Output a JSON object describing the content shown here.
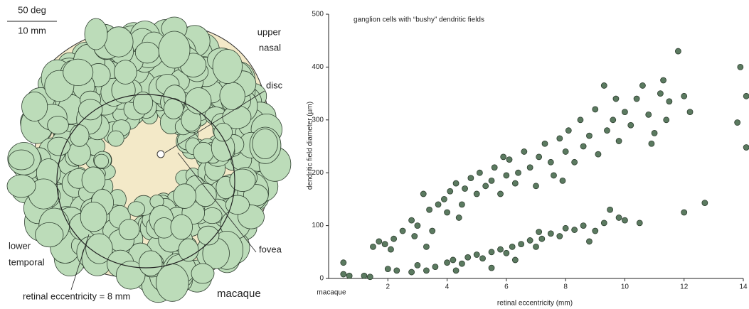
{
  "chart_data": {
    "type": "scatter",
    "title": "ganglion cells with “bushy” dendritic fields",
    "x_label": "retinal eccentricity (mm)",
    "y_label": "dendritic field diameter (µm)",
    "annotation": "macaque",
    "color": "#5b7a60",
    "xlim": [
      0,
      14
    ],
    "xticks": [
      2,
      4,
      6,
      8,
      10,
      12,
      14
    ],
    "ylim": [
      0,
      500
    ],
    "yticks": [
      0,
      100,
      200,
      300,
      400,
      500
    ],
    "x": [
      0.5,
      0.5,
      0.7,
      1.2,
      1.4,
      2,
      2.3,
      2.8,
      3.0,
      3.3,
      3.6,
      4,
      4.2,
      4.5,
      4.7,
      5,
      5.2,
      5.5,
      5.8,
      6,
      6.2,
      6.5,
      6.8,
      7,
      7.2,
      7.5,
      7.8,
      8,
      8.3,
      8.6,
      9,
      9.3,
      9.5,
      9.8,
      10,
      10.5,
      5.5,
      6.3,
      7.1,
      8.8,
      4.3,
      12,
      12.7,
      1.5,
      1.7,
      1.9,
      2.1,
      2.2,
      2.5,
      2.8,
      3,
      3.2,
      3.4,
      3.5,
      3.7,
      3.9,
      4,
      4.1,
      4.3,
      4.5,
      4.6,
      4.8,
      5,
      5.1,
      5.3,
      5.5,
      5.6,
      5.8,
      6,
      6.1,
      6.3,
      6.4,
      6.6,
      6.8,
      7,
      7.1,
      7.3,
      7.5,
      7.6,
      7.8,
      8,
      8.1,
      8.3,
      8.5,
      8.6,
      8.8,
      9,
      9.1,
      9.3,
      9.4,
      9.6,
      9.8,
      10,
      10.2,
      10.4,
      10.6,
      10.8,
      11,
      11.2,
      11.4,
      11.5,
      11.8,
      12,
      12.2,
      13.9,
      13.8,
      14.1,
      14.1,
      11.3,
      10.9,
      5.9,
      4.4,
      3.3,
      2.9,
      7.9,
      9.7
    ],
    "y": [
      30,
      8,
      5,
      5,
      3,
      18,
      15,
      12,
      25,
      15,
      22,
      30,
      35,
      28,
      40,
      45,
      38,
      50,
      55,
      48,
      60,
      65,
      72,
      60,
      75,
      85,
      80,
      95,
      92,
      100,
      90,
      105,
      130,
      115,
      110,
      105,
      20,
      35,
      88,
      70,
      15,
      125,
      143,
      60,
      70,
      65,
      55,
      75,
      90,
      110,
      100,
      160,
      130,
      90,
      140,
      150,
      125,
      165,
      180,
      140,
      170,
      190,
      160,
      200,
      175,
      185,
      210,
      160,
      195,
      225,
      180,
      200,
      240,
      210,
      175,
      230,
      255,
      220,
      195,
      265,
      240,
      280,
      220,
      300,
      250,
      270,
      320,
      235,
      365,
      280,
      300,
      260,
      315,
      290,
      340,
      365,
      310,
      275,
      350,
      300,
      335,
      430,
      345,
      315,
      400,
      295,
      345,
      248,
      375,
      255,
      230,
      115,
      60,
      80,
      185,
      340
    ]
  },
  "diagram": {
    "scale_top": "50 deg",
    "scale_bottom": "10 mm",
    "upper_nasal": [
      "upper",
      "nasal"
    ],
    "disc": "disc",
    "lower_temporal": [
      "lower",
      "temporal"
    ],
    "fovea": "fovea",
    "eccentricity": "retinal eccentricity = 8 mm",
    "species": "macaque"
  }
}
